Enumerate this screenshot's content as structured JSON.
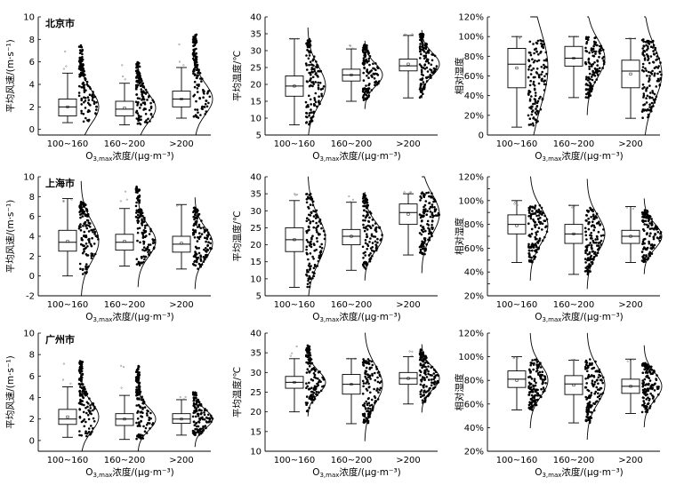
{
  "chart_data": [
    {
      "type": "box",
      "city": "北京市",
      "ylabel": "平均风速/(m·s⁻¹)",
      "xlabel_main": "O",
      "xlabel_sub": "3,max",
      "xlabel_tail": "浓度/(μg·m⁻³)",
      "categories": [
        "100~160",
        "160~200",
        ">200"
      ],
      "ylim": [
        -0.5,
        10
      ],
      "yticks": [
        0,
        2,
        4,
        6,
        8,
        10
      ],
      "ytick_labels": [
        "0",
        "2",
        "4",
        "6",
        "8",
        "10"
      ],
      "boxes": [
        {
          "q1": 1.2,
          "median": 2.0,
          "q3": 2.7,
          "whisker_low": 0.6,
          "whisker_high": 5.0,
          "mean": 2.0,
          "spread_max": 7.5
        },
        {
          "q1": 1.2,
          "median": 1.8,
          "q3": 2.5,
          "whisker_low": 0.4,
          "whisker_high": 4.1,
          "mean": 1.9,
          "spread_max": 6.0
        },
        {
          "q1": 2.0,
          "median": 2.7,
          "q3": 3.4,
          "whisker_low": 1.0,
          "whisker_high": 5.5,
          "mean": 2.7,
          "spread_max": 8.5
        }
      ]
    },
    {
      "type": "box",
      "city": "",
      "ylabel": "平均温度/℃",
      "xlabel_main": "O",
      "xlabel_sub": "3,max",
      "xlabel_tail": "浓度/(μg·m⁻³)",
      "categories": [
        "100~160",
        "160~200",
        ">200"
      ],
      "ylim": [
        5,
        40
      ],
      "yticks": [
        5,
        10,
        15,
        20,
        25,
        30,
        35,
        40
      ],
      "ytick_labels": [
        "5",
        "10",
        "15",
        "20",
        "25",
        "30",
        "35",
        "40"
      ],
      "boxes": [
        {
          "q1": 16.5,
          "median": 19.5,
          "q3": 22.5,
          "whisker_low": 8.0,
          "whisker_high": 33.5,
          "mean": 19.5,
          "spread_max": 33.5
        },
        {
          "q1": 21.0,
          "median": 22.8,
          "q3": 24.5,
          "whisker_low": 15.0,
          "whisker_high": 30.5,
          "mean": 22.8,
          "spread_max": 32.0
        },
        {
          "q1": 24.0,
          "median": 25.5,
          "q3": 27.5,
          "whisker_low": 16.0,
          "whisker_high": 34.5,
          "mean": 26.0,
          "spread_max": 35.0
        }
      ]
    },
    {
      "type": "box",
      "city": "",
      "ylabel": "相对湿度",
      "xlabel_main": "O",
      "xlabel_sub": "3,max",
      "xlabel_tail": "浓度/(μg·m⁻³)",
      "categories": [
        "100~160",
        "160~200",
        ">200"
      ],
      "ylim": [
        0,
        120
      ],
      "yticks": [
        0,
        20,
        40,
        60,
        80,
        100,
        120
      ],
      "ytick_labels": [
        "0",
        "20%",
        "40%",
        "60%",
        "80%",
        "100%",
        "120%"
      ],
      "boxes": [
        {
          "q1": 48,
          "median": 72,
          "q3": 88,
          "whisker_low": 8,
          "whisker_high": 100,
          "mean": 68,
          "spread_max": 98
        },
        {
          "q1": 70,
          "median": 78,
          "q3": 90,
          "whisker_low": 38,
          "whisker_high": 100,
          "mean": 78,
          "spread_max": 100
        },
        {
          "q1": 48,
          "median": 65,
          "q3": 76,
          "whisker_low": 17,
          "whisker_high": 98,
          "mean": 62,
          "spread_max": 98
        }
      ]
    },
    {
      "type": "box",
      "city": "上海市",
      "ylabel": "平均风速/(m·s⁻¹)",
      "xlabel_main": "O",
      "xlabel_sub": "3,max",
      "xlabel_tail": "浓度/(μg·m⁻³)",
      "categories": [
        "100~160",
        "160~200",
        ">200"
      ],
      "ylim": [
        -2,
        10
      ],
      "yticks": [
        -2,
        0,
        2,
        4,
        6,
        8,
        10
      ],
      "ytick_labels": [
        "-2",
        "0",
        "2",
        "4",
        "6",
        "8",
        "10"
      ],
      "boxes": [
        {
          "q1": 2.5,
          "median": 3.4,
          "q3": 4.6,
          "whisker_low": 0.0,
          "whisker_high": 7.8,
          "mean": 3.5,
          "spread_max": 7.5
        },
        {
          "q1": 2.6,
          "median": 3.4,
          "q3": 4.2,
          "whisker_low": 1.0,
          "whisker_high": 6.8,
          "mean": 3.5,
          "spread_max": 9.0
        },
        {
          "q1": 2.4,
          "median": 3.2,
          "q3": 4.0,
          "whisker_low": 0.7,
          "whisker_high": 7.2,
          "mean": 3.3,
          "spread_max": 7.0
        }
      ]
    },
    {
      "type": "box",
      "city": "",
      "ylabel": "平均温度/℃",
      "xlabel_main": "O",
      "xlabel_sub": "3,max",
      "xlabel_tail": "浓度/(μg·m⁻³)",
      "categories": [
        "100~160",
        "160~200",
        ">200"
      ],
      "ylim": [
        5,
        40
      ],
      "yticks": [
        5,
        10,
        15,
        20,
        25,
        30,
        35,
        40
      ],
      "ytick_labels": [
        "5",
        "10",
        "15",
        "20",
        "25",
        "30",
        "35",
        "40"
      ],
      "boxes": [
        {
          "q1": 18.0,
          "median": 21.5,
          "q3": 25.0,
          "whisker_low": 7.5,
          "whisker_high": 33.0,
          "mean": 21.5,
          "spread_max": 35.0
        },
        {
          "q1": 20.0,
          "median": 22.5,
          "q3": 24.5,
          "whisker_low": 12.5,
          "whisker_high": 32.5,
          "mean": 22.5,
          "spread_max": 35.0
        },
        {
          "q1": 26.0,
          "median": 29.5,
          "q3": 32.0,
          "whisker_low": 17.0,
          "whisker_high": 35.0,
          "mean": 29.0,
          "spread_max": 35.5
        }
      ]
    },
    {
      "type": "box",
      "city": "",
      "ylabel": "相对湿度",
      "xlabel_main": "O",
      "xlabel_sub": "3,max",
      "xlabel_tail": "浓度/(μg·m⁻³)",
      "categories": [
        "100~160",
        "160~200",
        ">200"
      ],
      "ylim": [
        20,
        120
      ],
      "yticks": [
        20,
        30,
        40,
        50,
        60,
        70,
        80,
        90,
        100,
        110,
        120
      ],
      "ytick_labels": [
        "20%",
        "",
        "40%",
        "",
        "60%",
        "",
        "80%",
        "",
        "100%",
        "",
        "120%"
      ],
      "boxes": [
        {
          "q1": 72,
          "median": 80,
          "q3": 88,
          "whisker_low": 48,
          "whisker_high": 100,
          "mean": 79,
          "spread_max": 96
        },
        {
          "q1": 64,
          "median": 72,
          "q3": 80,
          "whisker_low": 38,
          "whisker_high": 96,
          "mean": 72,
          "spread_max": 94
        },
        {
          "q1": 64,
          "median": 70,
          "q3": 75,
          "whisker_low": 48,
          "whisker_high": 95,
          "mean": 70,
          "spread_max": 92
        }
      ]
    },
    {
      "type": "box",
      "city": "广州市",
      "ylabel": "平均风速/(m·s⁻¹)",
      "xlabel_main": "O",
      "xlabel_sub": "3,max",
      "xlabel_tail": "浓度/(μg·m⁻³)",
      "categories": [
        "100~160",
        "160~200",
        ">200"
      ],
      "ylim": [
        -1,
        10
      ],
      "yticks": [
        0,
        2,
        4,
        6,
        8,
        10
      ],
      "ytick_labels": [
        "0",
        "2",
        "4",
        "6",
        "8",
        "10"
      ],
      "boxes": [
        {
          "q1": 1.5,
          "median": 2.0,
          "q3": 2.9,
          "whisker_low": 0.3,
          "whisker_high": 5.0,
          "mean": 2.2,
          "spread_max": 7.5
        },
        {
          "q1": 1.4,
          "median": 2.0,
          "q3": 2.5,
          "whisker_low": 0.1,
          "whisker_high": 4.2,
          "mean": 2.0,
          "spread_max": 7.0
        },
        {
          "q1": 1.6,
          "median": 2.0,
          "q3": 2.5,
          "whisker_low": 0.5,
          "whisker_high": 3.8,
          "mean": 2.0,
          "spread_max": 4.5
        }
      ]
    },
    {
      "type": "box",
      "city": "",
      "ylabel": "平均温度/℃",
      "xlabel_main": "O",
      "xlabel_sub": "3,max",
      "xlabel_tail": "浓度/(μg·m⁻³)",
      "categories": [
        "100~160",
        "160~200",
        ">200"
      ],
      "ylim": [
        10,
        40
      ],
      "yticks": [
        10,
        15,
        20,
        25,
        30,
        35,
        40
      ],
      "ytick_labels": [
        "10",
        "15",
        "20",
        "25",
        "30",
        "35",
        "40"
      ],
      "boxes": [
        {
          "q1": 26.0,
          "median": 27.5,
          "q3": 29.0,
          "whisker_low": 20.0,
          "whisker_high": 33.5,
          "mean": 27.5,
          "spread_max": 37.0
        },
        {
          "q1": 24.5,
          "median": 27.0,
          "q3": 29.5,
          "whisker_low": 17.0,
          "whisker_high": 33.5,
          "mean": 27.0,
          "spread_max": 33.5
        },
        {
          "q1": 27.0,
          "median": 28.5,
          "q3": 30.0,
          "whisker_low": 22.0,
          "whisker_high": 34.0,
          "mean": 28.5,
          "spread_max": 36.0
        }
      ]
    },
    {
      "type": "box",
      "city": "",
      "ylabel": "相对湿度",
      "xlabel_main": "O",
      "xlabel_sub": "3,max",
      "xlabel_tail": "浓度/(μg·m⁻³)",
      "categories": [
        "100~160",
        "160~200",
        ">200"
      ],
      "ylim": [
        20,
        120
      ],
      "yticks": [
        20,
        40,
        60,
        80,
        100,
        120
      ],
      "ytick_labels": [
        "20%",
        "40%",
        "60%",
        "80%",
        "100%",
        "120%"
      ],
      "boxes": [
        {
          "q1": 74,
          "median": 81,
          "q3": 88,
          "whisker_low": 55,
          "whisker_high": 100,
          "mean": 80,
          "spread_max": 98
        },
        {
          "q1": 68,
          "median": 77,
          "q3": 84,
          "whisker_low": 44,
          "whisker_high": 97,
          "mean": 76,
          "spread_max": 98
        },
        {
          "q1": 69,
          "median": 75,
          "q3": 81,
          "whisker_low": 52,
          "whisker_high": 98,
          "mean": 75,
          "spread_max": 95
        }
      ]
    }
  ]
}
